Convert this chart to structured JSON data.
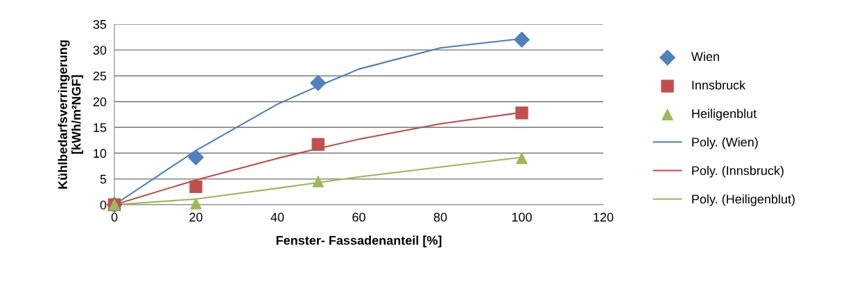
{
  "chart_data": {
    "type": "scatter",
    "xlabel": "Fenster- Fassadenanteil [%]",
    "ylabel": "Kühlbedarfsverringerung\n[kWh/m²NGF]",
    "xlim": [
      0,
      120
    ],
    "xticks": [
      0,
      20,
      40,
      60,
      80,
      100,
      120
    ],
    "ylim": [
      0,
      35
    ],
    "yticks": [
      0,
      5,
      10,
      15,
      20,
      25,
      30,
      35
    ],
    "grid": "y",
    "legend": "right",
    "series": [
      {
        "name": "Wien",
        "marker": "diamond",
        "color": "#4f81bd",
        "x": [
          0,
          20,
          50,
          100
        ],
        "values": [
          0,
          9.2,
          23.6,
          32.0
        ]
      },
      {
        "name": "Innsbruck",
        "marker": "square",
        "color": "#c0504d",
        "x": [
          0,
          20,
          50,
          100
        ],
        "values": [
          0,
          3.5,
          11.7,
          17.8
        ]
      },
      {
        "name": "Heiligenblut",
        "marker": "triangle",
        "color": "#9bbb59",
        "x": [
          0,
          20,
          50,
          100
        ],
        "values": [
          0,
          0.2,
          4.5,
          9.0
        ]
      },
      {
        "name": "Poly. (Wien)",
        "type": "line",
        "marker": "none",
        "color": "#4a7ebb",
        "x": [
          0,
          20,
          40,
          50,
          60,
          80,
          100
        ],
        "values": [
          0,
          10.5,
          19.5,
          23.0,
          26.3,
          30.4,
          32.2
        ]
      },
      {
        "name": "Poly. (Innsbruck)",
        "type": "line",
        "marker": "none",
        "color": "#be4b48",
        "x": [
          0,
          20,
          40,
          50,
          60,
          80,
          100
        ],
        "values": [
          0,
          4.8,
          9.0,
          10.9,
          12.7,
          15.7,
          17.9
        ]
      },
      {
        "name": "Poly. (Heiligenblut)",
        "type": "line",
        "marker": "none",
        "color": "#98b954",
        "x": [
          0,
          20,
          40,
          50,
          60,
          80,
          100
        ],
        "values": [
          0,
          1.1,
          3.2,
          4.3,
          5.4,
          7.3,
          9.2
        ]
      }
    ]
  }
}
